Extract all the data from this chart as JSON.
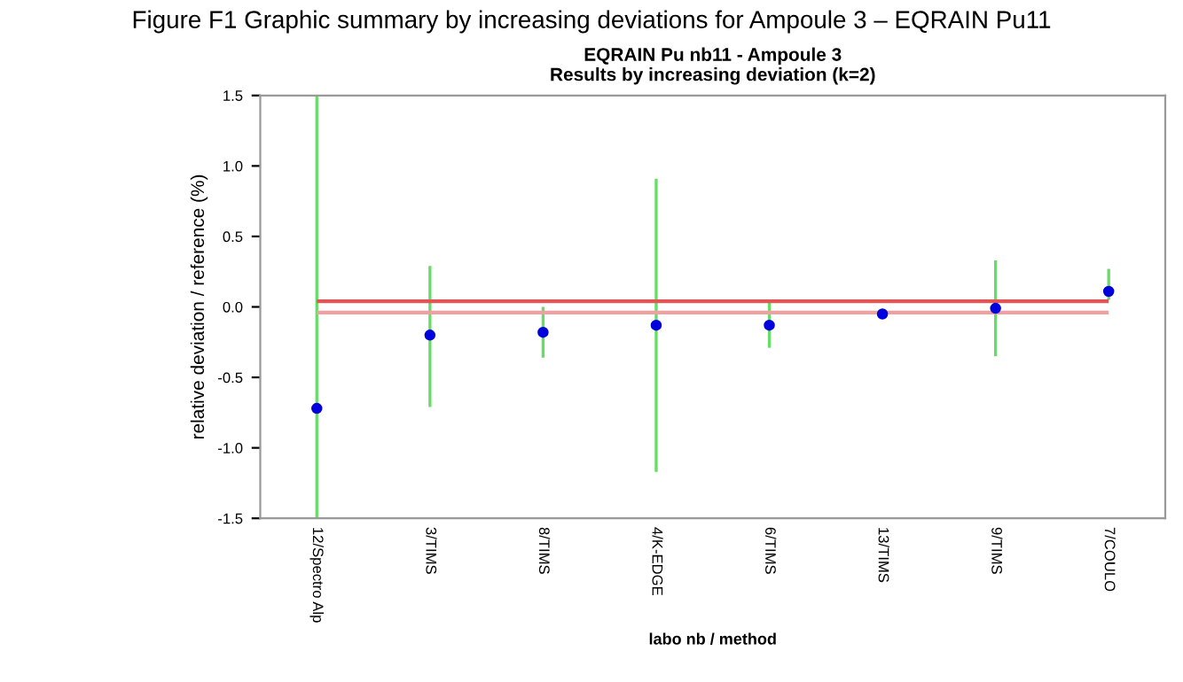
{
  "chart_data": {
    "type": "scatter",
    "title": "EQRAIN Pu nb11 - Ampoule 3\nResults by increasing deviation (k=2)",
    "xlabel": "labo nb / method",
    "ylabel": "relative deviation / reference (%)",
    "annotations": [
      "Figure F1 Graphic summary by increasing deviations for Ampoule 3 – EQRAIN Pu11"
    ],
    "categories": [
      "12/Spectro Alp",
      "3/TIMS",
      "8/TIMS",
      "4/K-EDGE",
      "6/TIMS",
      "13/TIMS",
      "9/TIMS",
      "7/COULO"
    ],
    "series": [
      {
        "color": "#0000dd",
        "values": [
          -0.72,
          -0.2,
          -0.18,
          -0.13,
          -0.13,
          -0.05,
          -0.01,
          0.11
        ],
        "errors": [
          [
            -1.5,
            1.5
          ],
          [
            -0.71,
            0.29
          ],
          [
            -0.36,
            0.0
          ],
          [
            -1.17,
            0.91
          ],
          [
            -0.29,
            0.03
          ],
          null,
          [
            -0.35,
            0.33
          ],
          [
            0.05,
            0.27
          ]
        ]
      }
    ],
    "ylim": [
      -1.5,
      1.5
    ],
    "yticks": [
      {
        "value": 1.5,
        "label": "1.5"
      },
      {
        "value": 1.0,
        "label": "1.0"
      },
      {
        "value": 0.5,
        "label": "0.5"
      },
      {
        "value": 0.0,
        "label": "0.0"
      },
      {
        "value": -0.5,
        "label": "-0.5"
      },
      {
        "value": -1.0,
        "label": "-1.0"
      },
      {
        "value": -1.5,
        "label": "-1.5"
      }
    ],
    "ref_lines": [
      {
        "axis": "y",
        "value": 0.04,
        "color": "#e05555"
      },
      {
        "axis": "y",
        "value": -0.04,
        "color": "#f0a0a0"
      }
    ],
    "marker": "circle",
    "grid": false,
    "legend": false
  }
}
